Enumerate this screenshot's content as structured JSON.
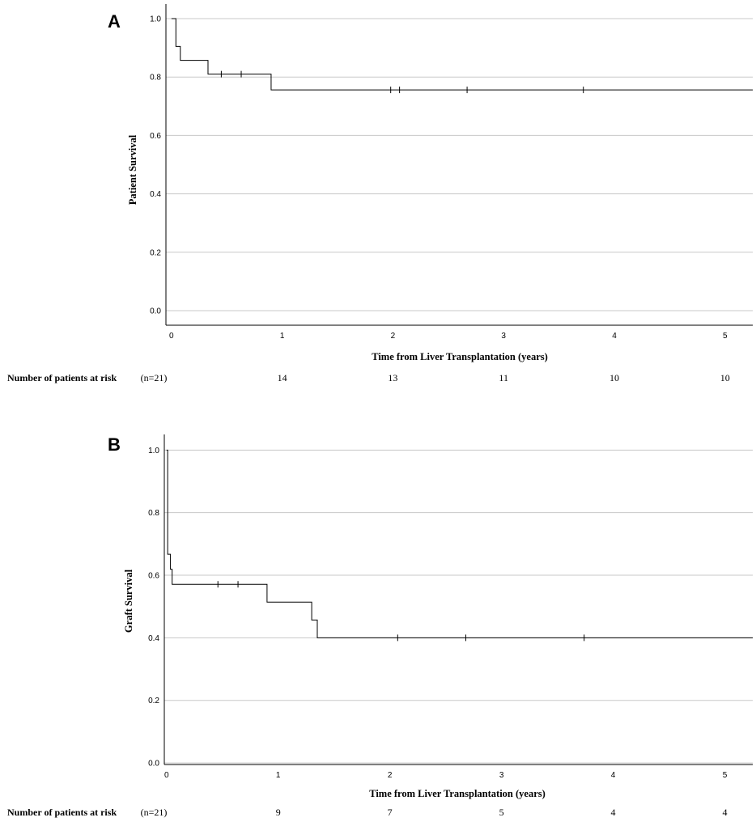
{
  "chart_data": [
    {
      "type": "line",
      "panel_label": "A",
      "xlabel": "Time from Liver Transplantation (years)",
      "ylabel": "Patient Survival",
      "xlim": [
        -0.05,
        5.25
      ],
      "ylim": [
        -0.05,
        1.05
      ],
      "x_ticks": [
        0,
        1,
        2,
        3,
        4,
        5
      ],
      "x_tick_labels": [
        "0",
        "1",
        "2",
        "3",
        "4",
        "5"
      ],
      "y_ticks": [
        0.0,
        0.2,
        0.4,
        0.6,
        0.8,
        1.0
      ],
      "y_tick_labels": [
        "0.0",
        "0.2",
        "0.4",
        "0.6",
        "0.8",
        "1.0"
      ],
      "grid": "horizontal",
      "curve": [
        {
          "x": 0,
          "y": 1.0
        },
        {
          "x": 0.04,
          "y": 0.905
        },
        {
          "x": 0.08,
          "y": 0.857
        },
        {
          "x": 0.33,
          "y": 0.81
        },
        {
          "x": 0.9,
          "y": 0.756
        },
        {
          "x": 5.25,
          "y": 0.756
        }
      ],
      "censored": [
        {
          "x": 0.45,
          "y": 0.81
        },
        {
          "x": 0.63,
          "y": 0.81
        },
        {
          "x": 1.98,
          "y": 0.756
        },
        {
          "x": 2.06,
          "y": 0.756
        },
        {
          "x": 2.67,
          "y": 0.756
        },
        {
          "x": 3.72,
          "y": 0.756
        }
      ],
      "risk_table": {
        "label": "Number of patients at risk",
        "n_label": "(n=21)",
        "times": [
          1,
          2,
          3,
          4,
          5
        ],
        "counts": [
          "14",
          "13",
          "11",
          "10",
          "10"
        ]
      }
    },
    {
      "type": "line",
      "panel_label": "B",
      "xlabel": "Time from Liver Transplantation (years)",
      "ylabel": "Graft Survival",
      "xlim": [
        -0.02,
        5.25
      ],
      "ylim": [
        -0.005,
        1.05
      ],
      "x_ticks": [
        0,
        1,
        2,
        3,
        4,
        5
      ],
      "x_tick_labels": [
        "0",
        "1",
        "2",
        "3",
        "4",
        "5"
      ],
      "y_ticks": [
        0.0,
        0.2,
        0.4,
        0.6,
        0.8,
        1.0
      ],
      "y_tick_labels": [
        "0.0",
        "0.2",
        "0.4",
        "0.6",
        "0.8",
        "1.0"
      ],
      "grid": "horizontal",
      "curve": [
        {
          "x": 0,
          "y": 1.0
        },
        {
          "x": 0.01,
          "y": 0.667
        },
        {
          "x": 0.035,
          "y": 0.619
        },
        {
          "x": 0.05,
          "y": 0.571
        },
        {
          "x": 0.9,
          "y": 0.514
        },
        {
          "x": 1.3,
          "y": 0.457
        },
        {
          "x": 1.35,
          "y": 0.4
        },
        {
          "x": 5.25,
          "y": 0.4
        }
      ],
      "censored": [
        {
          "x": 0.46,
          "y": 0.571
        },
        {
          "x": 0.64,
          "y": 0.571
        },
        {
          "x": 2.07,
          "y": 0.4
        },
        {
          "x": 2.68,
          "y": 0.4
        },
        {
          "x": 3.74,
          "y": 0.4
        }
      ],
      "risk_table": {
        "label": "Number of patients at risk",
        "n_label": "(n=21)",
        "times": [
          1,
          2,
          3,
          4,
          5
        ],
        "counts": [
          "9",
          "7",
          "5",
          "4",
          "4"
        ]
      }
    }
  ]
}
